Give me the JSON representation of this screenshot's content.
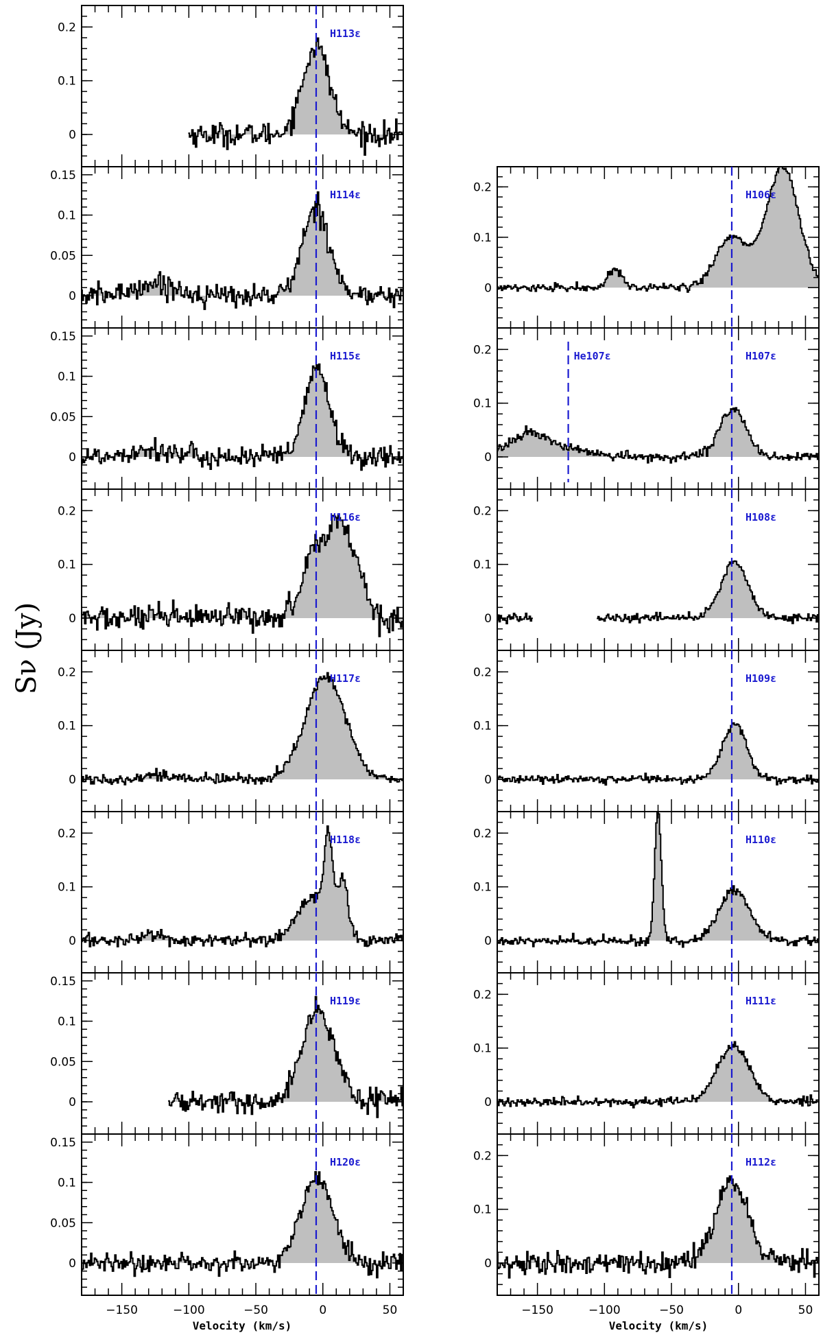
{
  "chart_data": {
    "type": "line",
    "xlabel": "Velocity (km/s)",
    "ylabel": "Sν (Jy)",
    "xlim": [
      -180,
      60
    ],
    "x_ticks": [
      -150,
      -100,
      -50,
      0,
      50
    ],
    "x_tick_labels": [
      "−150",
      "−100",
      "−50",
      "0",
      "50"
    ],
    "marker_velocity": -5,
    "line_color": "#000000",
    "fill_color": "#bfbfbf",
    "marker_color": "#1a1ad0",
    "panels": [
      {
        "id": "h113",
        "column": "left",
        "row": 0,
        "label": "H113ε",
        "ylim": [
          -0.06,
          0.24
        ],
        "yticks": [
          0,
          0.1,
          0.2
        ],
        "ytick_labels": [
          "0",
          "0.1",
          "0.2"
        ],
        "x_range": [
          -100,
          60
        ],
        "baseline_noise": 0.011,
        "components": [
          {
            "center": -5,
            "amplitude": 0.165,
            "sigma": 10
          }
        ]
      },
      {
        "id": "h114",
        "column": "left",
        "row": 1,
        "label": "H114ε",
        "ylim": [
          -0.04,
          0.16
        ],
        "yticks": [
          0,
          0.05,
          0.1,
          0.15
        ],
        "ytick_labels": [
          "0",
          "0.05",
          "0.1",
          "0.15"
        ],
        "x_range": [
          -180,
          60
        ],
        "baseline_noise": 0.007,
        "components": [
          {
            "center": -5,
            "amplitude": 0.11,
            "sigma": 10
          },
          {
            "center": -125,
            "amplitude": 0.015,
            "sigma": 15
          }
        ]
      },
      {
        "id": "h115",
        "column": "left",
        "row": 2,
        "label": "H115ε",
        "ylim": [
          -0.04,
          0.16
        ],
        "yticks": [
          0,
          0.05,
          0.1,
          0.15
        ],
        "ytick_labels": [
          "0",
          "0.05",
          "0.1",
          "0.15"
        ],
        "x_range": [
          -180,
          60
        ],
        "baseline_noise": 0.007,
        "components": [
          {
            "center": -4,
            "amplitude": 0.11,
            "sigma": 9
          },
          {
            "center": -130,
            "amplitude": 0.01,
            "sigma": 15
          }
        ]
      },
      {
        "id": "h116",
        "column": "left",
        "row": 3,
        "label": "H116ε",
        "ylim": [
          -0.06,
          0.24
        ],
        "yticks": [
          0,
          0.1,
          0.2
        ],
        "ytick_labels": [
          "0",
          "0.1",
          "0.2"
        ],
        "x_range": [
          -180,
          60
        ],
        "baseline_noise": 0.012,
        "components": [
          {
            "center": -3,
            "amplitude": 0.14,
            "sigma": 11
          },
          {
            "center": 20,
            "amplitude": 0.13,
            "sigma": 9
          },
          {
            "center": 10,
            "amplitude": 0.05,
            "sigma": 4
          }
        ]
      },
      {
        "id": "h117",
        "column": "left",
        "row": 4,
        "label": "H117ε",
        "ylim": [
          -0.06,
          0.24
        ],
        "yticks": [
          0,
          0.1,
          0.2
        ],
        "ytick_labels": [
          "0",
          "0.1",
          "0.2"
        ],
        "x_range": [
          -180,
          60
        ],
        "baseline_noise": 0.005,
        "components": [
          {
            "center": 2,
            "amplitude": 0.19,
            "sigma": 15
          },
          {
            "center": -125,
            "amplitude": 0.008,
            "sigma": 12
          }
        ]
      },
      {
        "id": "h118",
        "column": "left",
        "row": 5,
        "label": "H118ε",
        "ylim": [
          -0.06,
          0.24
        ],
        "yticks": [
          0,
          0.1,
          0.2
        ],
        "ytick_labels": [
          "0",
          "0.1",
          "0.2"
        ],
        "x_range": [
          -180,
          60
        ],
        "baseline_noise": 0.006,
        "components": [
          {
            "center": -7,
            "amplitude": 0.08,
            "sigma": 12
          },
          {
            "center": 4,
            "amplitude": 0.15,
            "sigma": 3
          },
          {
            "center": 15,
            "amplitude": 0.1,
            "sigma": 4
          },
          {
            "center": -128,
            "amplitude": 0.012,
            "sigma": 8
          }
        ]
      },
      {
        "id": "h119",
        "column": "left",
        "row": 6,
        "label": "H119ε",
        "ylim": [
          -0.04,
          0.16
        ],
        "yticks": [
          0,
          0.05,
          0.1,
          0.15
        ],
        "ytick_labels": [
          "0",
          "0.05",
          "0.1",
          "0.15"
        ],
        "x_range": [
          -115,
          60
        ],
        "baseline_noise": 0.007,
        "components": [
          {
            "center": -4,
            "amplitude": 0.115,
            "sigma": 12
          }
        ]
      },
      {
        "id": "h120",
        "column": "left",
        "row": 7,
        "label": "H120ε",
        "ylim": [
          -0.04,
          0.16
        ],
        "yticks": [
          0,
          0.05,
          0.1,
          0.15
        ],
        "ytick_labels": [
          "0",
          "0.05",
          "0.1",
          "0.15"
        ],
        "x_range": [
          -180,
          60
        ],
        "baseline_noise": 0.006,
        "components": [
          {
            "center": -5,
            "amplitude": 0.105,
            "sigma": 12
          }
        ]
      },
      {
        "id": "h106",
        "column": "right",
        "row": 1,
        "label": "H106ε",
        "ylim": [
          -0.08,
          0.24
        ],
        "yticks": [
          0,
          0.1,
          0.2
        ],
        "ytick_labels": [
          "0",
          "0.1",
          "0.2"
        ],
        "x_range": [
          -180,
          60
        ],
        "baseline_noise": 0.004,
        "components": [
          {
            "center": -5,
            "amplitude": 0.1,
            "sigma": 12
          },
          {
            "center": 33,
            "amplitude": 0.24,
            "sigma": 12
          },
          {
            "center": -92,
            "amplitude": 0.035,
            "sigma": 5
          }
        ]
      },
      {
        "id": "h107",
        "column": "right",
        "row": 2,
        "label": "H107ε",
        "extra_label": "He107ε",
        "extra_marker_velocity": -127,
        "ylim": [
          -0.06,
          0.24
        ],
        "yticks": [
          0,
          0.1,
          0.2
        ],
        "ytick_labels": [
          "0",
          "0.1",
          "0.2"
        ],
        "x_range": [
          -180,
          60
        ],
        "baseline_noise": 0.004,
        "components": [
          {
            "center": -4,
            "amplitude": 0.09,
            "sigma": 10
          },
          {
            "center": -155,
            "amplitude": 0.045,
            "sigma": 15
          },
          {
            "center": -120,
            "amplitude": 0.01,
            "sigma": 15
          }
        ]
      },
      {
        "id": "h108",
        "column": "right",
        "row": 3,
        "label": "H108ε",
        "ylim": [
          -0.06,
          0.24
        ],
        "yticks": [
          0,
          0.1,
          0.2
        ],
        "ytick_labels": [
          "0",
          "0.1",
          "0.2"
        ],
        "x_range": [
          -180,
          60
        ],
        "gap": [
          -153,
          -106
        ],
        "baseline_noise": 0.004,
        "components": [
          {
            "center": -3,
            "amplitude": 0.105,
            "sigma": 10
          }
        ]
      },
      {
        "id": "h109",
        "column": "right",
        "row": 4,
        "label": "H109ε",
        "ylim": [
          -0.06,
          0.24
        ],
        "yticks": [
          0,
          0.1,
          0.2
        ],
        "ytick_labels": [
          "0",
          "0.1",
          "0.2"
        ],
        "x_range": [
          -180,
          60
        ],
        "baseline_noise": 0.004,
        "components": [
          {
            "center": -3,
            "amplitude": 0.105,
            "sigma": 9
          }
        ]
      },
      {
        "id": "h110",
        "column": "right",
        "row": 5,
        "label": "H110ε",
        "ylim": [
          -0.06,
          0.24
        ],
        "yticks": [
          0,
          0.1,
          0.2
        ],
        "ytick_labels": [
          "0",
          "0.1",
          "0.2"
        ],
        "x_range": [
          -180,
          60
        ],
        "baseline_noise": 0.004,
        "components": [
          {
            "center": -3,
            "amplitude": 0.095,
            "sigma": 11
          },
          {
            "center": -60,
            "amplitude": 0.24,
            "sigma": 2.5
          }
        ]
      },
      {
        "id": "h111",
        "column": "right",
        "row": 6,
        "label": "H111ε",
        "ylim": [
          -0.06,
          0.24
        ],
        "yticks": [
          0,
          0.1,
          0.2
        ],
        "ytick_labels": [
          "0",
          "0.1",
          "0.2"
        ],
        "x_range": [
          -180,
          60
        ],
        "baseline_noise": 0.004,
        "components": [
          {
            "center": -4,
            "amplitude": 0.105,
            "sigma": 12
          }
        ]
      },
      {
        "id": "h112",
        "column": "right",
        "row": 7,
        "label": "H112ε",
        "ylim": [
          -0.06,
          0.24
        ],
        "yticks": [
          0,
          0.1,
          0.2
        ],
        "ytick_labels": [
          "0",
          "0.1",
          "0.2"
        ],
        "x_range": [
          -180,
          60
        ],
        "baseline_noise": 0.01,
        "components": [
          {
            "center": -5,
            "amplitude": 0.15,
            "sigma": 12
          }
        ]
      }
    ]
  }
}
